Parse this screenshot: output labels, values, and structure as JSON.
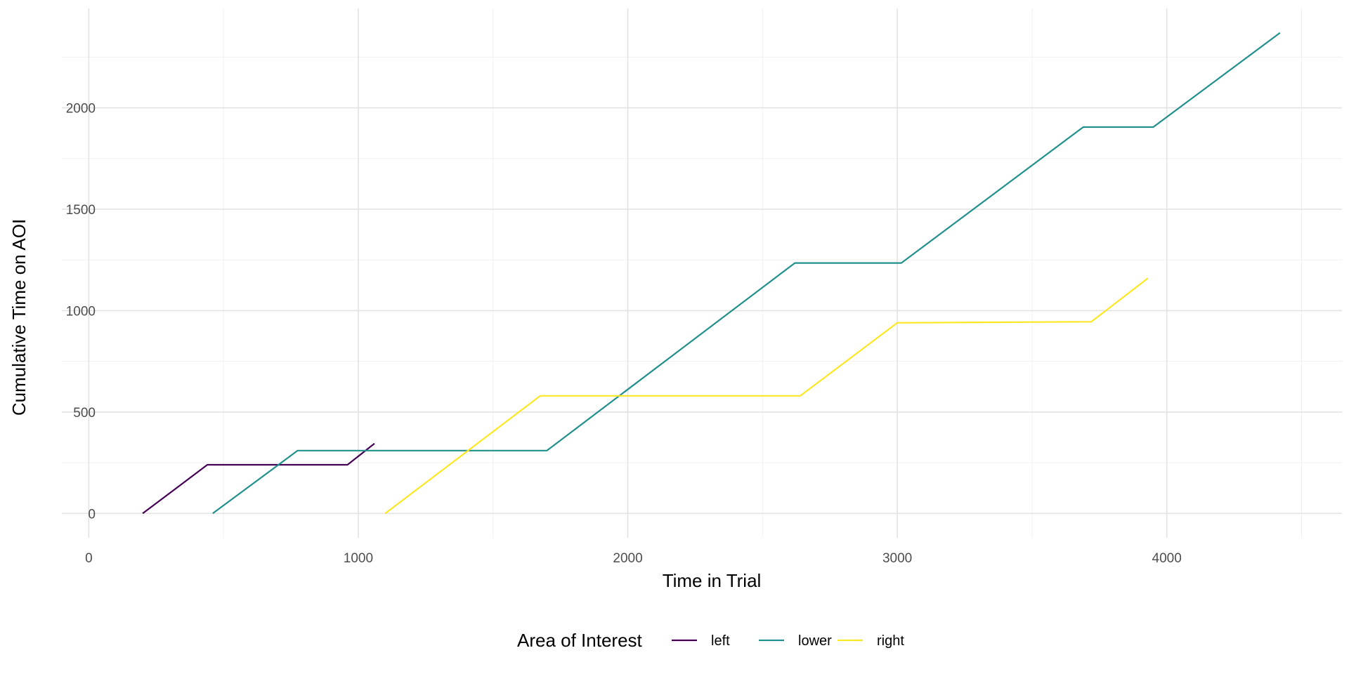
{
  "chart_data": {
    "type": "line",
    "title": "",
    "xlabel": "Time in Trial",
    "ylabel": "Cumulative Time on AOI",
    "xlim": [
      -100,
      4650
    ],
    "ylim": [
      -120,
      2490
    ],
    "x_ticks": [
      0,
      1000,
      2000,
      3000,
      4000
    ],
    "x_tick_labels": [
      "0",
      "1000",
      "2000",
      "3000",
      "4000"
    ],
    "x_minor_ticks": [
      500,
      1500,
      2500,
      3500,
      4500
    ],
    "y_ticks": [
      0,
      500,
      1000,
      1500,
      2000
    ],
    "y_tick_labels": [
      "0",
      "500",
      "1000",
      "1500",
      "2000"
    ],
    "y_minor_ticks": [
      250,
      750,
      1250,
      1750,
      2250
    ],
    "grid": true,
    "legend": {
      "title": "Area of Interest",
      "position": "bottom"
    },
    "series": [
      {
        "name": "left",
        "color": "#440154",
        "x": [
          200,
          440,
          960,
          1060
        ],
        "y": [
          0,
          240,
          240,
          345
        ]
      },
      {
        "name": "lower",
        "color": "#21908C",
        "x": [
          460,
          775,
          1700,
          2620,
          3015,
          3690,
          3950,
          4420
        ],
        "y": [
          0,
          310,
          310,
          1235,
          1235,
          1905,
          1905,
          2370
        ]
      },
      {
        "name": "right",
        "color": "#FDE725",
        "x": [
          1100,
          1675,
          2640,
          3000,
          3720,
          3930
        ],
        "y": [
          0,
          580,
          580,
          940,
          945,
          1160
        ]
      }
    ]
  }
}
